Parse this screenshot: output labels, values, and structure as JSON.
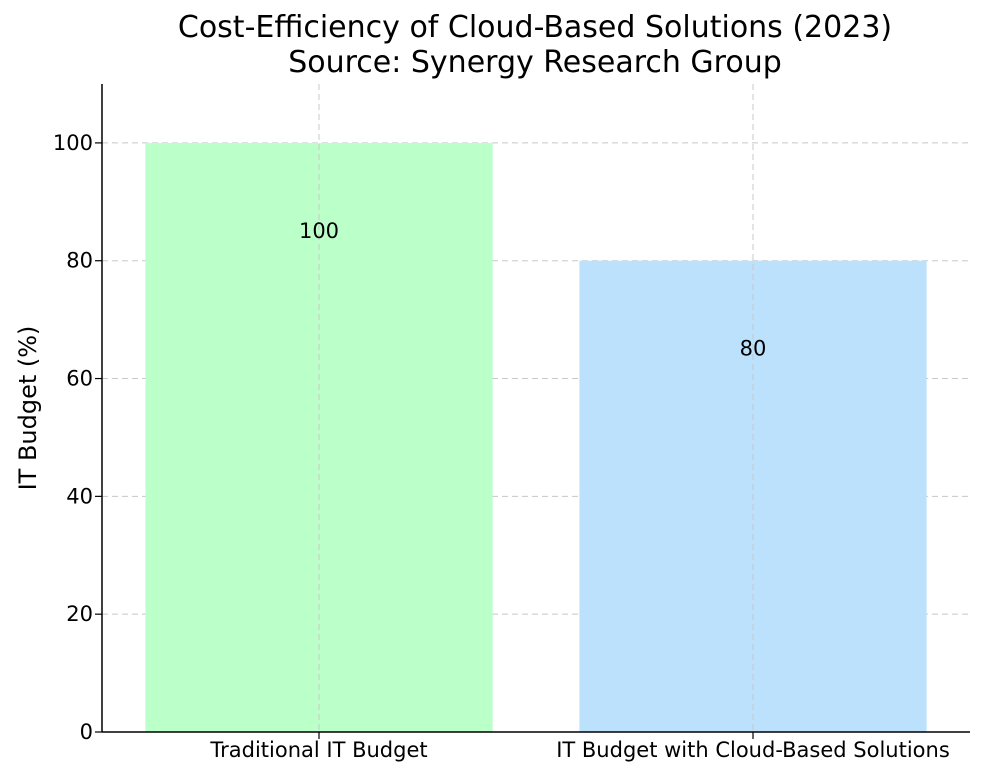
{
  "chart_data": {
    "type": "bar",
    "title": "Cost-Efficiency of Cloud-Based Solutions (2023)",
    "subtitle": "Source: Synergy Research Group",
    "xlabel": "",
    "ylabel": "IT Budget (%)",
    "categories": [
      "Traditional IT Budget",
      "IT Budget with Cloud-Based Solutions"
    ],
    "values": [
      100,
      80
    ],
    "value_labels": [
      "100",
      "80"
    ],
    "colors": [
      "#bbffc9",
      "#bbe1fd"
    ],
    "ylim": [
      0,
      110
    ],
    "yticks": [
      0,
      20,
      40,
      60,
      80,
      100
    ],
    "ytick_labels": [
      "0",
      "20",
      "40",
      "60",
      "80",
      "100"
    ],
    "grid": true,
    "grid_color": "#c8c8c8"
  }
}
